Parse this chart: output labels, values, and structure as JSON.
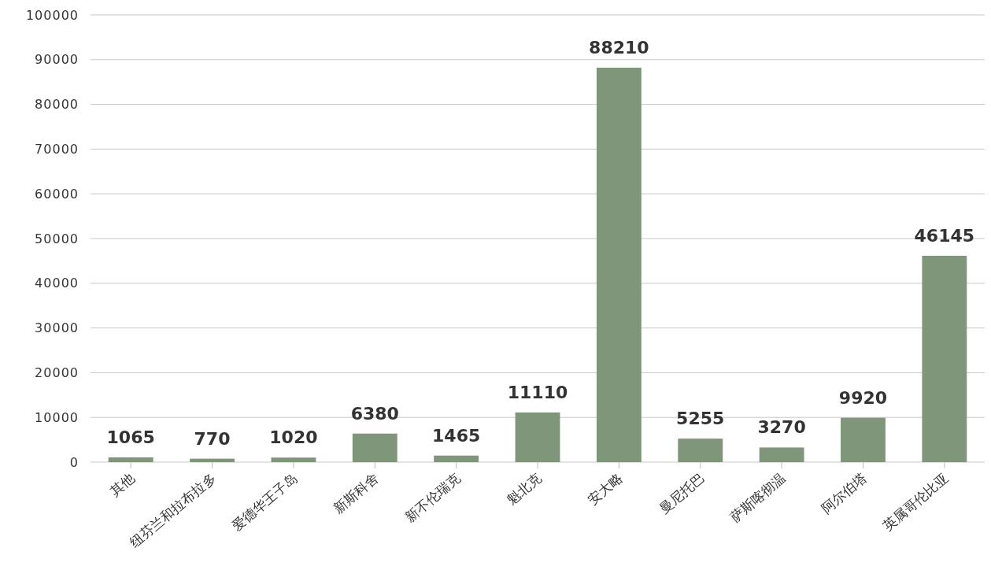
{
  "chart_data": {
    "type": "bar",
    "categories": [
      "其他",
      "纽芬兰和拉布拉多",
      "爱德华王子岛",
      "新斯科舍",
      "新不伦瑞克",
      "魁北克",
      "安大略",
      "曼尼托巴",
      "萨斯喀彻温",
      "阿尔伯塔",
      "英属哥伦比亚"
    ],
    "values": [
      1065,
      770,
      1020,
      6380,
      1465,
      11110,
      88210,
      5255,
      3270,
      9920,
      46145
    ],
    "color": "#7f967a",
    "ylim": [
      0,
      100000
    ],
    "yticks": [
      0,
      10000,
      20000,
      30000,
      40000,
      50000,
      60000,
      70000,
      80000,
      90000,
      100000
    ],
    "grid": "y",
    "data_labels": true
  }
}
